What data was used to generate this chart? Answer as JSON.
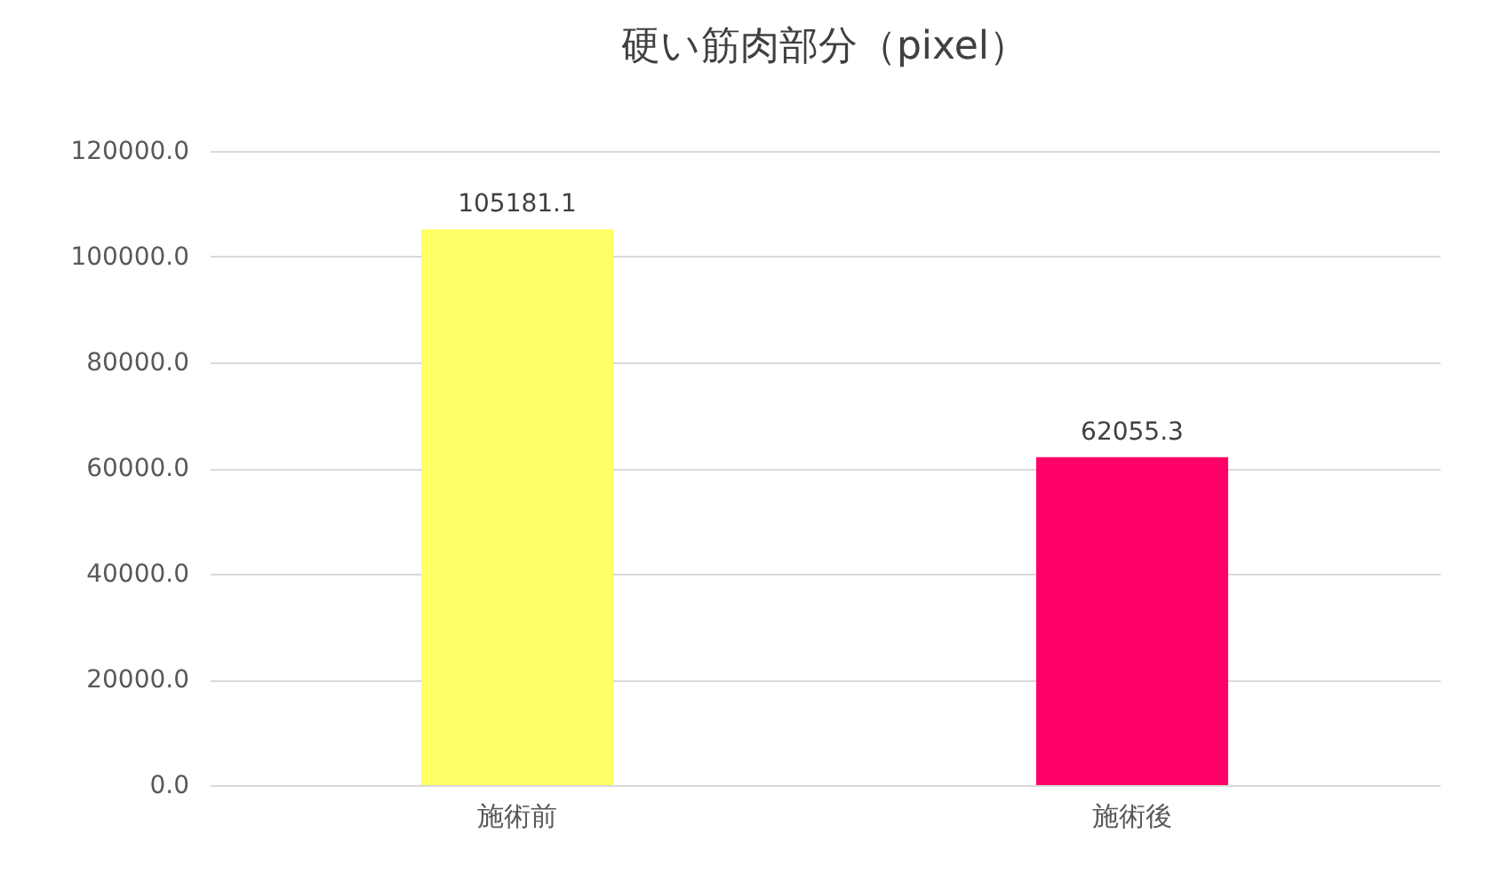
{
  "chart_data": {
    "type": "bar",
    "title": "硬い筋肉部分（pixel）",
    "categories": [
      "施術前",
      "施術後"
    ],
    "values": [
      105181.1,
      62055.3
    ],
    "colors": [
      "#ffff66",
      "#ff0066"
    ],
    "ylim": [
      0,
      120000
    ],
    "yticks": [
      {
        "value": 0,
        "label": "0.0"
      },
      {
        "value": 20000,
        "label": "20000.0"
      },
      {
        "value": 40000,
        "label": "40000.0"
      },
      {
        "value": 60000,
        "label": "60000.0"
      },
      {
        "value": 80000,
        "label": "80000.0"
      },
      {
        "value": 100000,
        "label": "100000.0"
      },
      {
        "value": 120000,
        "label": "120000.0"
      }
    ],
    "grid": "y",
    "data_labels": true,
    "legend": false
  }
}
